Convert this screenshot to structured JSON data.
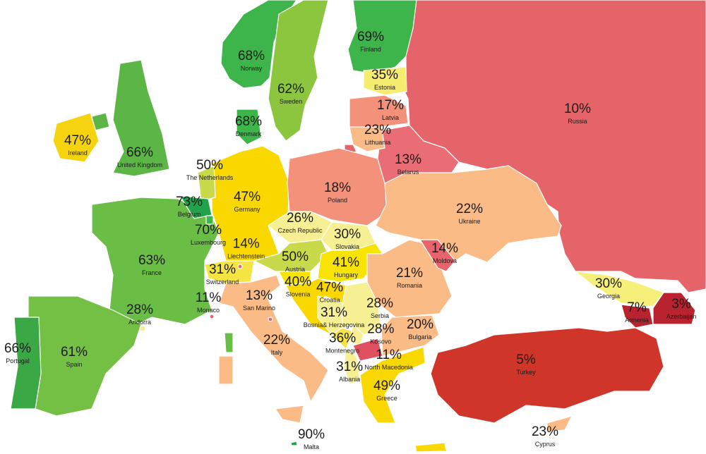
{
  "map": {
    "colors": {
      "dark_green": "#39a94a",
      "green": "#6abd45",
      "light_green": "#a8cf45",
      "yellow_green": "#c8d94a",
      "yellow": "#f9d800",
      "light_yellow": "#f6ef93",
      "pale_yellow": "#f6ec70",
      "peach": "#fbbb87",
      "salmon": "#f4917a",
      "pink_red": "#e8646c",
      "red": "#d0352a",
      "dark_red": "#b8232f"
    },
    "countries": [
      {
        "name": "Russia",
        "value": "10%",
        "color": "#e5646a"
      },
      {
        "name": "Finland",
        "value": "69%",
        "color": "#3db54a"
      },
      {
        "name": "Norway",
        "value": "68%",
        "color": "#3db54a"
      },
      {
        "name": "Sweden",
        "value": "62%",
        "color": "#8cc63f"
      },
      {
        "name": "Denmark",
        "value": "68%",
        "color": "#3db54a"
      },
      {
        "name": "United Kingdom",
        "value": "66%",
        "color": "#5cb646"
      },
      {
        "name": "Ireland",
        "value": "47%",
        "color": "#f5d30e"
      },
      {
        "name": "France",
        "value": "63%",
        "color": "#6abd45"
      },
      {
        "name": "Spain",
        "value": "61%",
        "color": "#74c045"
      },
      {
        "name": "Portugal",
        "value": "66%",
        "color": "#3aa845"
      },
      {
        "name": "Germany",
        "value": "47%",
        "color": "#f9d800"
      },
      {
        "name": "The Netherlands",
        "value": "50%",
        "color": "#c8d94a"
      },
      {
        "name": "Belgium",
        "value": "73%",
        "color": "#22a24a"
      },
      {
        "name": "Luxembourg",
        "value": "70%",
        "color": "#3db54a"
      },
      {
        "name": "Poland",
        "value": "18%",
        "color": "#f4917a"
      },
      {
        "name": "Czech Republic",
        "value": "26%",
        "color": "#f6ef93"
      },
      {
        "name": "Slovakia",
        "value": "30%",
        "color": "#f6ef93"
      },
      {
        "name": "Austria",
        "value": "50%",
        "color": "#c8d94a"
      },
      {
        "name": "Switzerland",
        "value": "31%",
        "color": "#f6e442"
      },
      {
        "name": "Liechtenstein",
        "value": "14%",
        "color": "#e8646c"
      },
      {
        "name": "Hungary",
        "value": "41%",
        "color": "#f9e300"
      },
      {
        "name": "Slovenia",
        "value": "40%",
        "color": "#f9e300"
      },
      {
        "name": "Croatia",
        "value": "47%",
        "color": "#f9d800"
      },
      {
        "name": "Bosnia& Herzegovina",
        "value": "31%",
        "color": "#f6ef93"
      },
      {
        "name": "Serbia",
        "value": "28%",
        "color": "#f6ef93"
      },
      {
        "name": "Montenegro",
        "value": "36%",
        "color": "#f6e442"
      },
      {
        "name": "Kosovo",
        "value": "28%",
        "color": "#f6ef93"
      },
      {
        "name": "North Macedonia",
        "value": "11%",
        "color": "#e05060"
      },
      {
        "name": "Albania",
        "value": "31%",
        "color": "#f6ef93"
      },
      {
        "name": "Greece",
        "value": "49%",
        "color": "#f9d800"
      },
      {
        "name": "Bulgaria",
        "value": "20%",
        "color": "#fbbb87"
      },
      {
        "name": "Romania",
        "value": "21%",
        "color": "#fbbb87"
      },
      {
        "name": "Moldova",
        "value": "14%",
        "color": "#e8646c"
      },
      {
        "name": "Ukraine",
        "value": "22%",
        "color": "#fbbb87"
      },
      {
        "name": "Belarus",
        "value": "13%",
        "color": "#ea6c75"
      },
      {
        "name": "Lithuania",
        "value": "23%",
        "color": "#fbbb87"
      },
      {
        "name": "Latvia",
        "value": "17%",
        "color": "#f4917a"
      },
      {
        "name": "Estonia",
        "value": "35%",
        "color": "#f6ec70"
      },
      {
        "name": "Italy",
        "value": "22%",
        "color": "#fbbb87"
      },
      {
        "name": "San Marino",
        "value": "13%",
        "color": "#e8646c"
      },
      {
        "name": "Monaco",
        "value": "11%",
        "color": "#e8646c"
      },
      {
        "name": "Andorra",
        "value": "28%",
        "color": "#f6ef93"
      },
      {
        "name": "Malta",
        "value": "90%",
        "color": "#22a24a"
      },
      {
        "name": "Turkey",
        "value": "5%",
        "color": "#d0352a"
      },
      {
        "name": "Georgia",
        "value": "30%",
        "color": "#f6f07a"
      },
      {
        "name": "Armenia",
        "value": "7%",
        "color": "#b8232f"
      },
      {
        "name": "Azerbaijan",
        "value": "3%",
        "color": "#b8232f"
      },
      {
        "name": "Cyprus",
        "value": "23%",
        "color": "#fbbb87"
      }
    ]
  }
}
